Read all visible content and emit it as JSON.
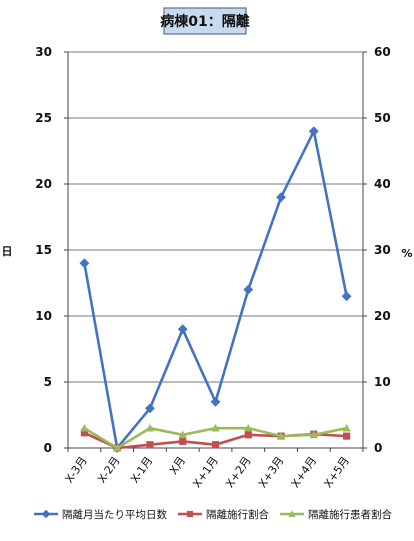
{
  "chart_data": {
    "type": "line",
    "title": "病棟01：隔離",
    "categories": [
      "X-3月",
      "X-2月",
      "X-1月",
      "X月",
      "X+1月",
      "X+2月",
      "X+3月",
      "X+4月",
      "X+5月"
    ],
    "ylabel_left": "日",
    "ylabel_right": "%",
    "ylim_left": [
      0,
      30
    ],
    "ylim_right": [
      0,
      60
    ],
    "yticks_left": [
      "0",
      "5",
      "10",
      "15",
      "20",
      "25",
      "30"
    ],
    "yticks_right": [
      "0",
      "10",
      "20",
      "30",
      "40",
      "50",
      "60"
    ],
    "grid": true,
    "legend_position": "bottom",
    "series": [
      {
        "name": "隔離月当たり平均日数",
        "axis": "left",
        "color": "#4472c4",
        "marker": "diamond",
        "values": [
          14,
          0,
          3,
          9,
          3.5,
          12,
          19,
          24,
          11.5
        ]
      },
      {
        "name": "隔離施行割合",
        "axis": "right",
        "color": "#c0504d",
        "marker": "square",
        "values": [
          2.3,
          0,
          0.5,
          1,
          0.5,
          2,
          1.8,
          2.1,
          1.8
        ]
      },
      {
        "name": "隔離施行患者割合",
        "axis": "right",
        "color": "#9bbb59",
        "marker": "triangle",
        "values": [
          3,
          0,
          3,
          2,
          3,
          3,
          1.8,
          2,
          3
        ]
      }
    ]
  }
}
